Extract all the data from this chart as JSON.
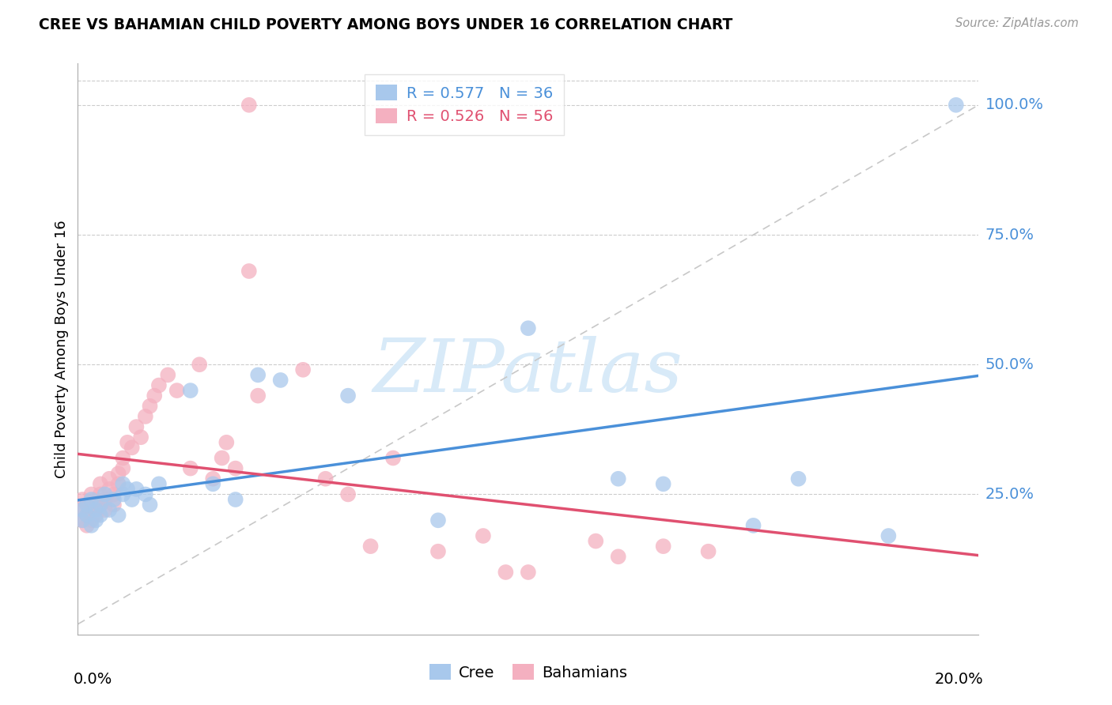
{
  "title": "CREE VS BAHAMIAN CHILD POVERTY AMONG BOYS UNDER 16 CORRELATION CHART",
  "source": "Source: ZipAtlas.com",
  "ylabel": "Child Poverty Among Boys Under 16",
  "ytick_labels": [
    "100.0%",
    "75.0%",
    "50.0%",
    "25.0%"
  ],
  "ytick_values": [
    1.0,
    0.75,
    0.5,
    0.25
  ],
  "xmin": 0.0,
  "xmax": 0.2,
  "ymin": -0.02,
  "ymax": 1.08,
  "cree_R": 0.577,
  "cree_N": 36,
  "bahamian_R": 0.526,
  "bahamian_N": 56,
  "cree_color": "#A8C8EC",
  "bahamian_color": "#F4B0C0",
  "line_cree_color": "#4A90D9",
  "line_bahamian_color": "#E05070",
  "diagonal_color": "#C8C8C8",
  "grid_color": "#CCCCCC",
  "background_color": "#FFFFFF",
  "watermark_text": "ZIPatlas",
  "watermark_color": "#D8EAF8",
  "cree_x": [
    0.001,
    0.001,
    0.002,
    0.002,
    0.003,
    0.003,
    0.004,
    0.004,
    0.005,
    0.005,
    0.006,
    0.007,
    0.008,
    0.009,
    0.01,
    0.01,
    0.011,
    0.012,
    0.013,
    0.015,
    0.016,
    0.018,
    0.025,
    0.03,
    0.035,
    0.04,
    0.045,
    0.06,
    0.08,
    0.1,
    0.12,
    0.13,
    0.15,
    0.16,
    0.18,
    0.195
  ],
  "cree_y": [
    0.2,
    0.22,
    0.21,
    0.23,
    0.19,
    0.24,
    0.22,
    0.2,
    0.21,
    0.23,
    0.25,
    0.22,
    0.24,
    0.21,
    0.25,
    0.27,
    0.26,
    0.24,
    0.26,
    0.25,
    0.23,
    0.27,
    0.45,
    0.27,
    0.24,
    0.48,
    0.47,
    0.44,
    0.2,
    0.57,
    0.28,
    0.27,
    0.19,
    0.28,
    0.17,
    1.0
  ],
  "bahamian_x": [
    0.001,
    0.001,
    0.001,
    0.002,
    0.002,
    0.002,
    0.003,
    0.003,
    0.003,
    0.004,
    0.004,
    0.005,
    0.005,
    0.005,
    0.006,
    0.006,
    0.007,
    0.007,
    0.008,
    0.008,
    0.009,
    0.009,
    0.01,
    0.01,
    0.011,
    0.012,
    0.013,
    0.014,
    0.015,
    0.016,
    0.017,
    0.018,
    0.02,
    0.022,
    0.025,
    0.027,
    0.03,
    0.032,
    0.033,
    0.035,
    0.04,
    0.05,
    0.055,
    0.06,
    0.065,
    0.07,
    0.08,
    0.09,
    0.095,
    0.1,
    0.115,
    0.12,
    0.13,
    0.14,
    0.038,
    0.038
  ],
  "bahamian_y": [
    0.2,
    0.22,
    0.24,
    0.19,
    0.21,
    0.23,
    0.2,
    0.25,
    0.22,
    0.24,
    0.21,
    0.23,
    0.25,
    0.27,
    0.22,
    0.24,
    0.26,
    0.28,
    0.23,
    0.25,
    0.27,
    0.29,
    0.3,
    0.32,
    0.35,
    0.34,
    0.38,
    0.36,
    0.4,
    0.42,
    0.44,
    0.46,
    0.48,
    0.45,
    0.3,
    0.5,
    0.28,
    0.32,
    0.35,
    0.3,
    0.44,
    0.49,
    0.28,
    0.25,
    0.15,
    0.32,
    0.14,
    0.17,
    0.1,
    0.1,
    0.16,
    0.13,
    0.15,
    0.14,
    0.68,
    1.0
  ]
}
